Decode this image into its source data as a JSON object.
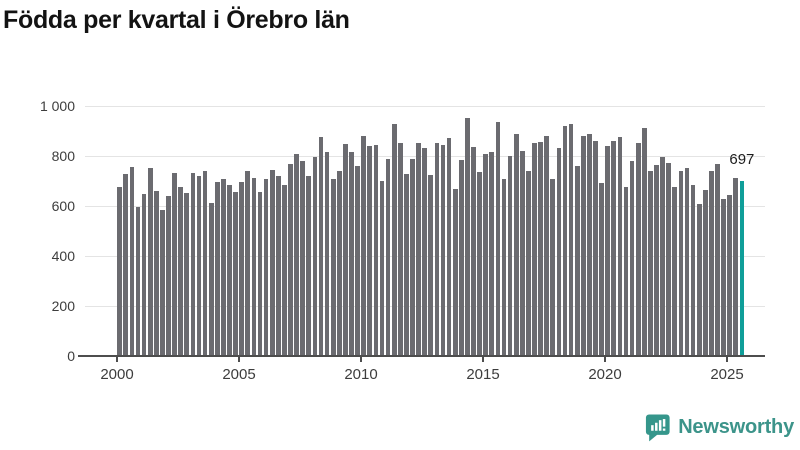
{
  "title": "Födda per kvartal i Örebro län",
  "branding": {
    "logo_text": "Newsworthy"
  },
  "colors": {
    "bar": "#6b6b70",
    "accent": "#0f9e99",
    "logo_teal": "#3c948a",
    "grid": "#e4e4e4",
    "axis": "#4d4d4d",
    "tick_text": "#3d3d3d",
    "title_text": "#131313"
  },
  "chart_data": {
    "type": "bar",
    "title": "Födda per kvartal i Örebro län",
    "frequency": "quarterly",
    "x_start": "2000 Q1",
    "x_end": "2025 Q3",
    "xlabel": "",
    "ylabel": "",
    "ylim": [
      0,
      1000
    ],
    "grid": true,
    "legend": false,
    "y_ticks": [
      "1 000",
      "800",
      "600",
      "400",
      "200",
      "0"
    ],
    "x_ticks": [
      "2000",
      "2005",
      "2010",
      "2015",
      "2020",
      "2025"
    ],
    "highlight_last": true,
    "last_value_label": "697",
    "values": [
      671,
      724,
      751,
      591,
      644,
      747,
      655,
      581,
      635,
      728,
      672,
      647,
      727,
      717,
      737,
      607,
      691,
      704,
      680,
      653,
      691,
      737,
      707,
      653,
      704,
      740,
      717,
      680,
      764,
      804,
      777,
      717,
      791,
      871,
      811,
      704,
      737,
      844,
      811,
      757,
      875,
      835,
      840,
      697,
      784,
      924,
      848,
      724,
      784,
      847,
      827,
      721,
      848,
      841,
      867,
      664,
      781,
      947,
      831,
      731,
      804,
      811,
      931,
      704,
      797,
      884,
      817,
      735,
      847,
      851,
      877,
      704,
      827,
      917,
      923,
      755,
      875,
      883,
      857,
      688,
      835,
      855,
      871,
      671,
      775,
      848,
      908,
      737,
      760,
      791,
      768,
      671,
      736,
      750,
      680,
      605,
      661,
      737,
      765,
      624,
      640,
      707,
      697
    ]
  }
}
